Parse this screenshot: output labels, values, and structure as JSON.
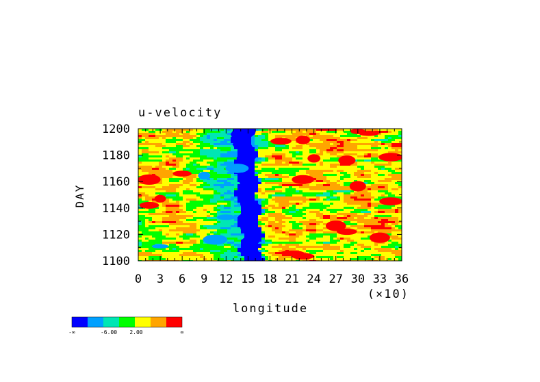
{
  "chart_data": {
    "type": "heatmap",
    "title": "u-velocity",
    "xlabel": "longitude",
    "x_multiplier": "(×10)",
    "ylabel": "DAY",
    "xlim": [
      0,
      36
    ],
    "ylim": [
      1100,
      1200
    ],
    "x_ticks": [
      0,
      3,
      6,
      9,
      12,
      15,
      18,
      21,
      24,
      27,
      30,
      33,
      36
    ],
    "y_ticks": [
      1100,
      1120,
      1140,
      1160,
      1180,
      1200
    ],
    "colorbar": {
      "colors": [
        "#0000ff",
        "#00a0ff",
        "#00e6b4",
        "#00ff00",
        "#ffff00",
        "#ffa500",
        "#ff0000"
      ],
      "labels": [
        "-∞",
        "-6.00",
        "2.00",
        "∞"
      ]
    },
    "cells": [
      {
        "x": 19.5,
        "y": 1190.5,
        "level": 6
      },
      {
        "x": 22.5,
        "y": 1191.5,
        "level": 6
      },
      {
        "x": 30.0,
        "y": 1198.0,
        "level": 6
      },
      {
        "x": 31.5,
        "y": 1196.5,
        "level": 6
      },
      {
        "x": 24.0,
        "y": 1177.5,
        "level": 6
      },
      {
        "x": 28.5,
        "y": 1176.0,
        "level": 6
      },
      {
        "x": 34.5,
        "y": 1178.5,
        "level": 6
      },
      {
        "x": 6.0,
        "y": 1166.0,
        "level": 6
      },
      {
        "x": 1.5,
        "y": 1161.5,
        "level": 6
      },
      {
        "x": 22.5,
        "y": 1161.5,
        "level": 6
      },
      {
        "x": 30.0,
        "y": 1156.5,
        "level": 6
      },
      {
        "x": 1.5,
        "y": 1142.0,
        "level": 6
      },
      {
        "x": 3.0,
        "y": 1147.0,
        "level": 6
      },
      {
        "x": 34.5,
        "y": 1145.0,
        "level": 6
      },
      {
        "x": 27.0,
        "y": 1126.5,
        "level": 6
      },
      {
        "x": 28.5,
        "y": 1122.0,
        "level": 6
      },
      {
        "x": 21.0,
        "y": 1106.0,
        "level": 6
      },
      {
        "x": 22.5,
        "y": 1103.5,
        "level": 6
      },
      {
        "x": 33.0,
        "y": 1117.5,
        "level": 6
      },
      {
        "x": 13.5,
        "y": 1170.0,
        "level": 1
      },
      {
        "x": 9.0,
        "y": 1164.5,
        "level": 1
      },
      {
        "x": 12.0,
        "y": 1133.0,
        "level": 1
      },
      {
        "x": 3.0,
        "y": 1111.0,
        "level": 1
      },
      {
        "x": 10.5,
        "y": 1116.0,
        "level": 1
      }
    ]
  }
}
